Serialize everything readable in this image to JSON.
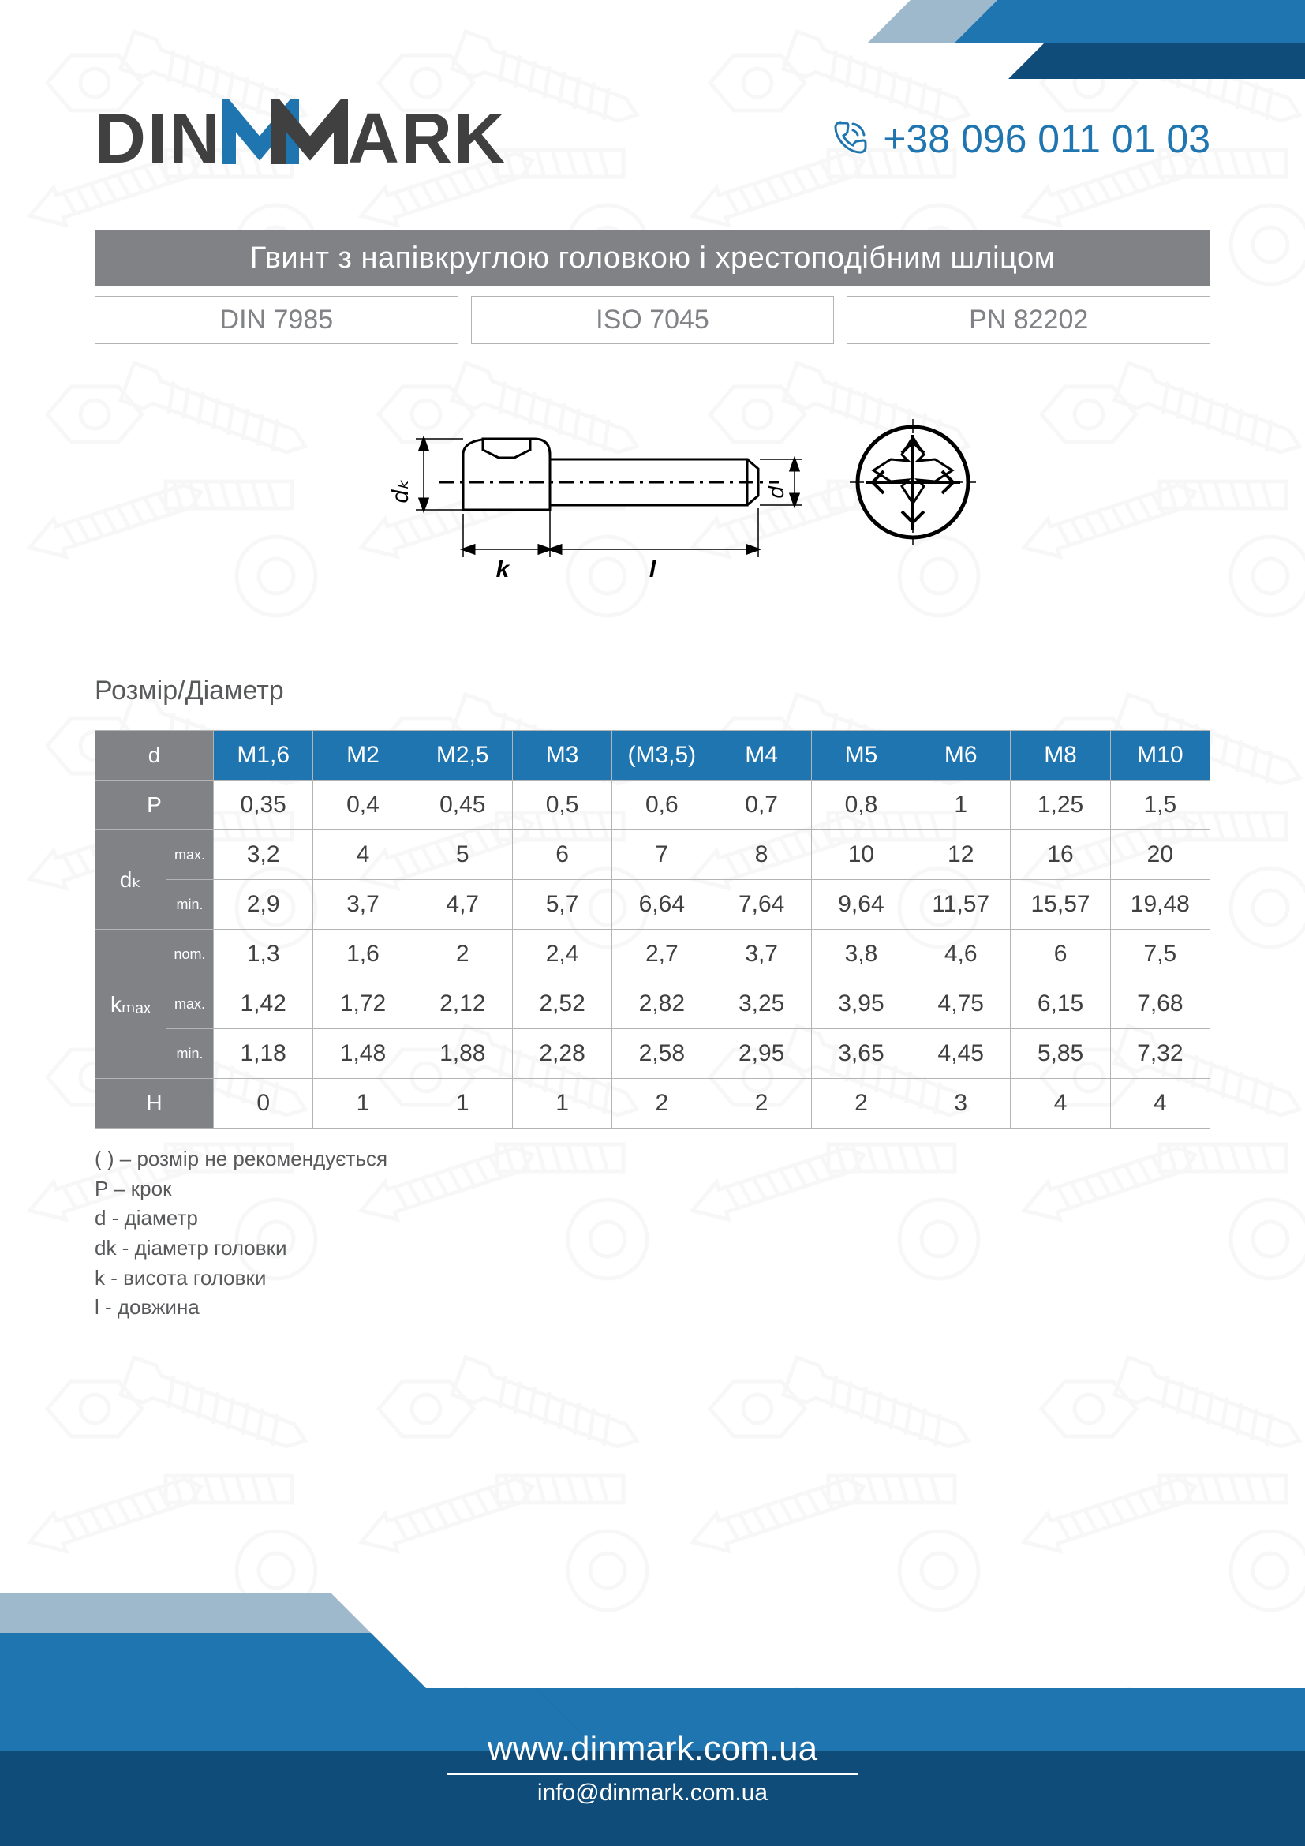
{
  "brand": {
    "din": "DIN",
    "ark": "ARK",
    "phone": "+38 096 011 01 03"
  },
  "colors": {
    "primary": "#1f75b0",
    "primary_dark": "#0f4c7a",
    "grey": "#808285"
  },
  "title": "Гвинт з напівкруглою головкою і хрестоподібним шліцом",
  "standards": {
    "a": "DIN 7985",
    "b": "ISO 7045",
    "c": "PN 82202"
  },
  "drawing": {
    "dk": "dₖ",
    "k": "k",
    "l": "l",
    "d": "d"
  },
  "section_label": "Розмір/Діаметр",
  "table": {
    "d_label": "d",
    "sizes": [
      "M1,6",
      "M2",
      "M2,5",
      "M3",
      "(M3,5)",
      "M4",
      "M5",
      "M6",
      "M8",
      "M10"
    ],
    "rows": [
      {
        "h1": "P",
        "h2": "",
        "v": [
          "0,35",
          "0,4",
          "0,45",
          "0,5",
          "0,6",
          "0,7",
          "0,8",
          "1",
          "1,25",
          "1,5"
        ]
      },
      {
        "h1": "dₖ",
        "h2": "max.",
        "v": [
          "3,2",
          "4",
          "5",
          "6",
          "7",
          "8",
          "10",
          "12",
          "16",
          "20"
        ]
      },
      {
        "h1": "",
        "h2": "min.",
        "v": [
          "2,9",
          "3,7",
          "4,7",
          "5,7",
          "6,64",
          "7,64",
          "9,64",
          "11,57",
          "15,57",
          "19,48"
        ]
      },
      {
        "h1": "kₘₐₓ",
        "h2": "nom.",
        "v": [
          "1,3",
          "1,6",
          "2",
          "2,4",
          "2,7",
          "3,7",
          "3,8",
          "4,6",
          "6",
          "7,5"
        ]
      },
      {
        "h1": "",
        "h2": "max.",
        "v": [
          "1,42",
          "1,72",
          "2,12",
          "2,52",
          "2,82",
          "3,25",
          "3,95",
          "4,75",
          "6,15",
          "7,68"
        ]
      },
      {
        "h1": "",
        "h2": "min.",
        "v": [
          "1,18",
          "1,48",
          "1,88",
          "2,28",
          "2,58",
          "2,95",
          "3,65",
          "4,45",
          "5,85",
          "7,32"
        ]
      },
      {
        "h1": "H",
        "h2": "",
        "v": [
          "0",
          "1",
          "1",
          "1",
          "2",
          "2",
          "2",
          "3",
          "4",
          "4"
        ]
      }
    ]
  },
  "legend": [
    "( ) – розмір не рекомендується",
    "P – крок",
    "d - діаметр",
    "dk - діаметр головки",
    "k - висота головки",
    "l - довжина"
  ],
  "footer": {
    "url": "www.dinmark.com.ua",
    "mail": "info@dinmark.com.ua"
  }
}
